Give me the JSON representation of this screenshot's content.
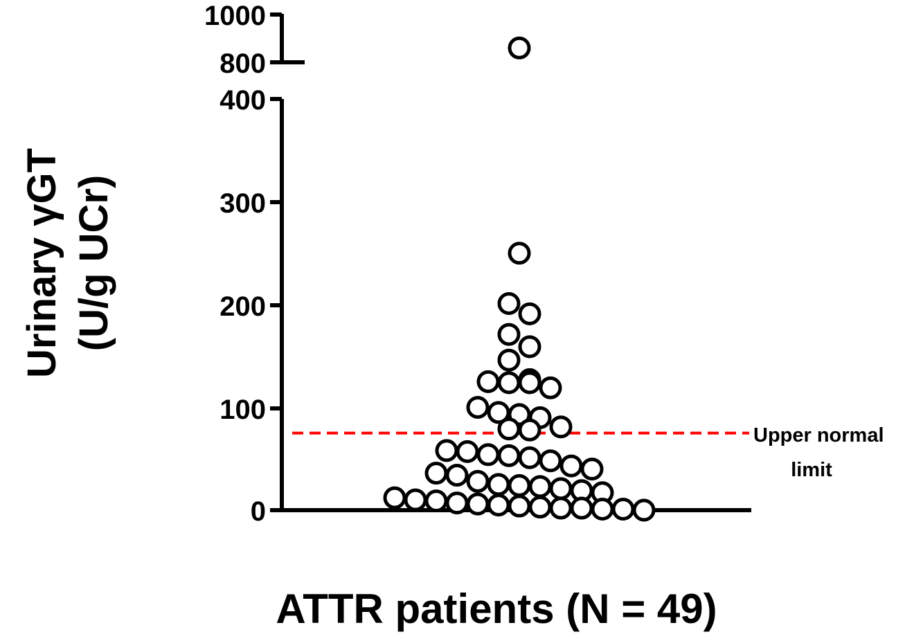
{
  "chart_data": {
    "type": "scatter",
    "xlabel": "ATTR patients (N = 49)",
    "ylabel_line1": "Urinary γGT",
    "ylabel_line2": "(U/g UCr)",
    "ylim_lower": [
      0,
      400
    ],
    "ylim_upper": [
      800,
      1000
    ],
    "axis_break": true,
    "lower_ticks": [
      "0",
      "100",
      "200",
      "300",
      "400"
    ],
    "upper_ticks": [
      "800",
      "1000"
    ],
    "reference_line": {
      "value": 75,
      "color": "#ff0000",
      "style": "dashed",
      "label_line1": "Upper normal",
      "label_line2": "limit"
    },
    "values": [
      860,
      250,
      201,
      191,
      171,
      159,
      146,
      127,
      125,
      124,
      124,
      119,
      100,
      95,
      93,
      90,
      81,
      79,
      78,
      58,
      57,
      54,
      53,
      51,
      48,
      43,
      40,
      36,
      34,
      28,
      25,
      24,
      23,
      21,
      19,
      17,
      12,
      10,
      9,
      7,
      6,
      5,
      4,
      3,
      2,
      2,
      1,
      1,
      0
    ]
  }
}
